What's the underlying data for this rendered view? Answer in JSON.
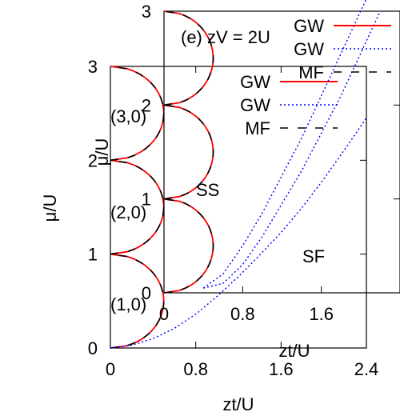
{
  "chart_data": [
    {
      "type": "line",
      "panel": "main",
      "xlabel": "zt/U",
      "ylabel": "μ/U",
      "xlim": [
        0,
        2.4
      ],
      "ylim": [
        0,
        3
      ],
      "xticks": [
        "0",
        "0.8",
        "1.6",
        "2.4"
      ],
      "yticks": [
        "0",
        "1",
        "2",
        "3"
      ],
      "annotations": [
        "(1,0)",
        "(2,0)",
        "(3,0)"
      ],
      "legend": {
        "placement": "top-right",
        "entries": [
          {
            "label": "GW",
            "color": "#ff0000",
            "style": "solid"
          },
          {
            "label": "GW",
            "color": "#0000ff",
            "style": "dotted"
          },
          {
            "label": "MF",
            "color": "#000000",
            "style": "dashed"
          }
        ]
      },
      "series": [
        {
          "style": "solid",
          "color": "#ff0000",
          "lobes": [
            {
              "n": 1,
              "mu_range": [
                0,
                1
              ],
              "zt_max": 0.5
            },
            {
              "n": 2,
              "mu_range": [
                1,
                2
              ],
              "zt_max": 0.5
            },
            {
              "n": 3,
              "mu_range": [
                2,
                3
              ],
              "zt_max": 0.5
            }
          ]
        },
        {
          "style": "dashed",
          "color": "#000000",
          "lobes": [
            {
              "n": 1,
              "mu_range": [
                0,
                1
              ],
              "zt_max": 0.5
            },
            {
              "n": 2,
              "mu_range": [
                1,
                2
              ],
              "zt_max": 0.5
            },
            {
              "n": 3,
              "mu_range": [
                2,
                3
              ],
              "zt_max": 0.5
            }
          ]
        },
        {
          "style": "dotted",
          "color": "#0000ff",
          "x": [
            0,
            0.2,
            0.4,
            0.6,
            0.8,
            1.0,
            1.2,
            1.4,
            1.6,
            1.8,
            2.0,
            2.2,
            2.4
          ],
          "y": [
            0,
            0.03,
            0.1,
            0.21,
            0.36,
            0.55,
            0.76,
            0.99,
            1.23,
            1.5,
            1.8,
            2.12,
            2.45
          ]
        }
      ]
    },
    {
      "type": "line",
      "panel": "inset",
      "title": "(e) zV = 2U",
      "xlabel": "zt/U",
      "ylabel": "μ/U",
      "xlim": [
        0,
        2.4
      ],
      "ylim": [
        0,
        3
      ],
      "xticks": [
        "0",
        "0.8",
        "1.6"
      ],
      "yticks": [
        "0",
        "1",
        "2",
        "3"
      ],
      "annotations": [
        "SS",
        "SF"
      ],
      "legend": {
        "placement": "top-right",
        "entries": [
          {
            "label": "GW",
            "color": "#ff0000",
            "style": "solid"
          },
          {
            "label": "GW",
            "color": "#0000ff",
            "style": "dotted"
          },
          {
            "label": "MF",
            "color": "#000000",
            "style": "dashed"
          }
        ]
      },
      "series": [
        {
          "style": "solid",
          "color": "#ff0000",
          "lobes": [
            {
              "mu_range": [
                0,
                1
              ],
              "zt_max": 0.5
            },
            {
              "mu_range": [
                1,
                2
              ],
              "zt_max": 0.5
            },
            {
              "mu_range": [
                2,
                3
              ],
              "zt_max": 0.5
            }
          ]
        },
        {
          "style": "dashed",
          "color": "#000000",
          "lobes": [
            {
              "mu_range": [
                0,
                1
              ],
              "zt_max": 0.5
            },
            {
              "mu_range": [
                1,
                2
              ],
              "zt_max": 0.5
            },
            {
              "mu_range": [
                2,
                3
              ],
              "zt_max": 0.5
            }
          ]
        },
        {
          "style": "dotted",
          "color": "#0000ff",
          "name": "",
          "x": [
            0.4,
            0.6,
            0.8,
            1.0,
            1.2,
            1.4,
            1.6,
            1.8,
            2.0,
            2.2
          ],
          "y": [
            0.05,
            0.1,
            0.3,
            0.6,
            0.95,
            1.3,
            1.7,
            2.1,
            2.55,
            3.0
          ]
        },
        {
          "style": "dotted",
          "color": "#0000ff",
          "x": [
            0.4,
            0.6,
            0.8,
            1.0,
            1.2,
            1.4,
            1.6,
            1.8,
            2.0,
            2.2
          ],
          "y": [
            0.05,
            0.2,
            0.5,
            0.85,
            1.25,
            1.65,
            2.1,
            2.55,
            3.0,
            3.45
          ]
        }
      ]
    }
  ]
}
